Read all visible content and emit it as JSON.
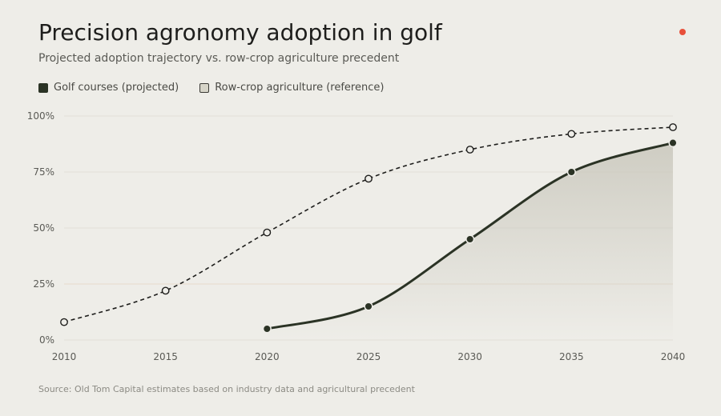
{
  "colors": {
    "golf": "#2b3325",
    "reference": "#1e1e1c",
    "accent_dot": "#e8503a",
    "grid": "#e2e0d9",
    "threshold": "#e6dbcc"
  },
  "chart_data": {
    "type": "line",
    "title": "Precision agronomy adoption in golf",
    "subtitle": "Projected adoption trajectory vs. row-crop agriculture precedent",
    "xlabel": "",
    "ylabel": "",
    "x_ticks": [
      "2010",
      "2015",
      "2020",
      "2025",
      "2030",
      "2035",
      "2040"
    ],
    "y_ticks": [
      "0%",
      "25%",
      "50%",
      "75%",
      "100%"
    ],
    "xlim": [
      2010,
      2040
    ],
    "ylim": [
      0,
      100
    ],
    "grid": true,
    "legend_position": "top-left",
    "series": [
      {
        "name": "Golf courses (projected)",
        "style": "solid",
        "x": [
          2020,
          2025,
          2030,
          2035,
          2040
        ],
        "values": [
          5,
          15,
          45,
          75,
          88
        ]
      },
      {
        "name": "Row-crop agriculture (reference)",
        "style": "dashed",
        "x": [
          2010,
          2015,
          2020,
          2025,
          2030,
          2035,
          2040
        ],
        "values": [
          8,
          22,
          48,
          72,
          85,
          92,
          95
        ]
      }
    ],
    "source": "Source: Old Tom Capital estimates based on industry data and agricultural precedent"
  }
}
